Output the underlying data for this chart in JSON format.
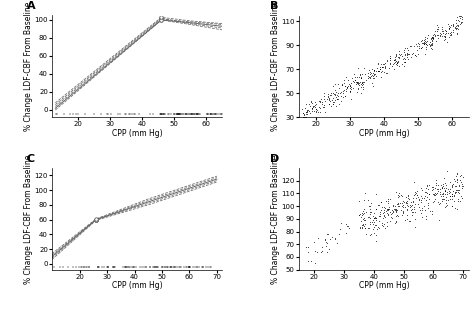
{
  "panel_A": {
    "label": "A",
    "lines": [
      {
        "x": [
          13,
          46,
          55,
          65
        ],
        "y": [
          2,
          100,
          97,
          93
        ],
        "ls": "-"
      },
      {
        "x": [
          13,
          46,
          55,
          65
        ],
        "y": [
          4,
          101,
          98,
          95
        ],
        "ls": "--"
      },
      {
        "x": [
          13,
          46,
          55,
          65
        ],
        "y": [
          6,
          102,
          96,
          91
        ],
        "ls": "--"
      },
      {
        "x": [
          13,
          46,
          55,
          65
        ],
        "y": [
          0,
          100,
          95,
          89
        ],
        "ls": "--"
      },
      {
        "x": [
          13,
          46,
          55,
          65
        ],
        "y": [
          8,
          103,
          99,
          96
        ],
        "ls": "--"
      }
    ],
    "knot_x": 46,
    "xlim": [
      12,
      65
    ],
    "ylim": [
      0,
      105
    ],
    "xticks": [
      20,
      30,
      40,
      50,
      60
    ],
    "yticks": [
      0,
      20,
      40,
      60,
      80,
      100
    ],
    "xlabel": "CPP (mm Hg)",
    "ylabel": "% Change LDF-CBF From Baseline"
  },
  "panel_B": {
    "label": "B",
    "xlim": [
      15,
      65
    ],
    "ylim": [
      30,
      115
    ],
    "xticks": [
      20,
      30,
      40,
      50,
      60
    ],
    "yticks": [
      30,
      50,
      70,
      90,
      110
    ],
    "xlabel": "CPP (mm Hg)",
    "ylabel": "% Change LDF-CBF From Baseline",
    "n_points": 450
  },
  "panel_C": {
    "label": "C",
    "lines": [
      {
        "x": [
          10,
          26,
          45,
          70
        ],
        "y": [
          10,
          60,
          84,
          115
        ],
        "ls": "-"
      },
      {
        "x": [
          10,
          26,
          45,
          70
        ],
        "y": [
          8,
          60,
          82,
          113
        ],
        "ls": "--"
      },
      {
        "x": [
          10,
          26,
          45,
          70
        ],
        "y": [
          12,
          60,
          86,
          117
        ],
        "ls": "--"
      },
      {
        "x": [
          10,
          26,
          45,
          70
        ],
        "y": [
          6,
          59,
          80,
          111
        ],
        "ls": "--"
      },
      {
        "x": [
          10,
          26,
          45,
          70
        ],
        "y": [
          14,
          61,
          88,
          119
        ],
        "ls": "--"
      }
    ],
    "knot_x": 26,
    "xlim": [
      10,
      72
    ],
    "ylim": [
      0,
      130
    ],
    "xticks": [
      20,
      30,
      40,
      50,
      60,
      70
    ],
    "yticks": [
      0,
      20,
      40,
      60,
      80,
      100,
      120
    ],
    "xlabel": "CPP (mm Hg)",
    "ylabel": "% Change LDF-CBF From Baseline"
  },
  "panel_D": {
    "label": "D",
    "xlim": [
      15,
      72
    ],
    "ylim": [
      50,
      130
    ],
    "xticks": [
      20,
      30,
      40,
      50,
      60,
      70
    ],
    "yticks": [
      50,
      60,
      70,
      80,
      90,
      100,
      110,
      120
    ],
    "xlabel": "CPP (mm Hg)",
    "ylabel": "% Change LDF-CBF From Baseline",
    "n_main": 380,
    "n_small": 35
  },
  "line_color": "#666666",
  "dot_color": "#000000",
  "background": "#ffffff",
  "fontsize_label": 5.5,
  "fontsize_panel": 8,
  "fontsize_tick": 5
}
